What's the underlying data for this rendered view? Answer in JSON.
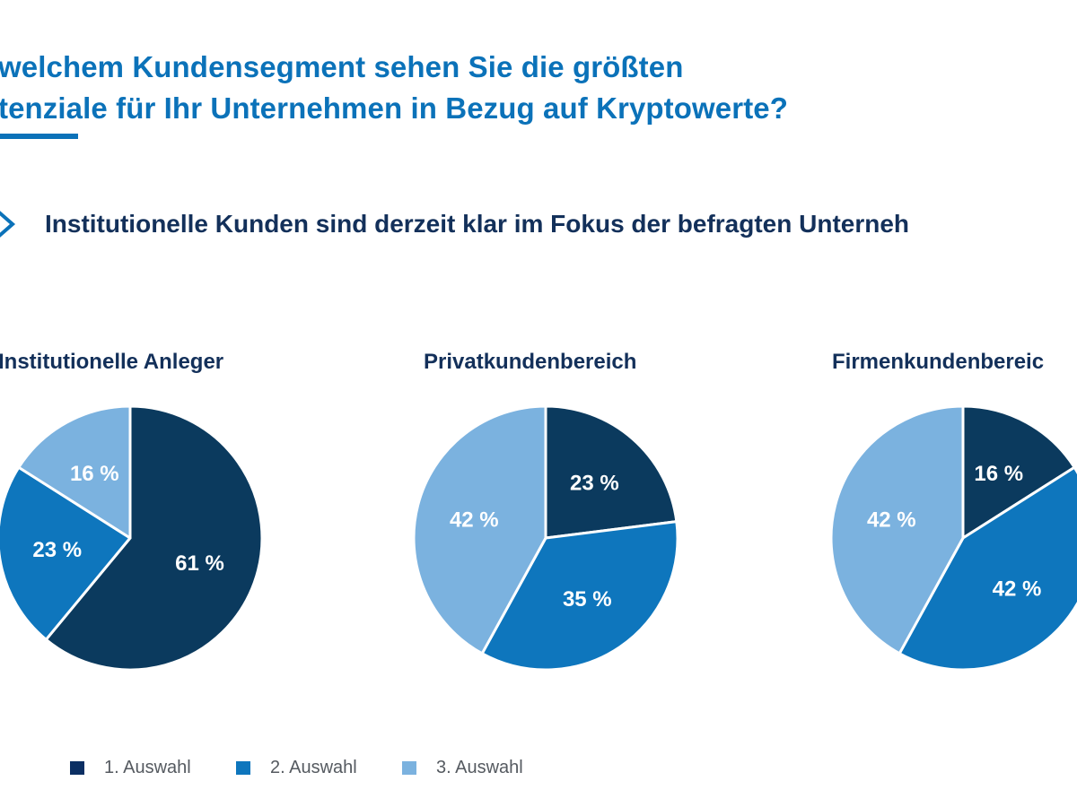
{
  "header": {
    "title_lines": [
      "welchem Kundensegment sehen Sie die größten",
      "tenziale für Ihr Unternehmen in Bezug auf Kryptowerte?"
    ],
    "accent_color": "#0b72b9"
  },
  "subtitle": {
    "icon": "chevron-right-icon",
    "text": "Institutionelle Kunden sind derzeit klar im Fokus der befragten Unterneh"
  },
  "colors": {
    "first_choice": "#0b3a5e",
    "second_choice": "#0e76bd",
    "third_choice": "#7bb2df"
  },
  "legend": [
    {
      "label": "1. Auswahl",
      "color": "#0b2f63"
    },
    {
      "label": "2. Auswahl",
      "color": "#0e76bd"
    },
    {
      "label": "3. Auswahl",
      "color": "#7bb2df"
    }
  ],
  "chart_data": [
    {
      "type": "pie",
      "title": "Institutionelle Anleger",
      "categories": [
        "1. Auswahl",
        "2. Auswahl",
        "3. Auswahl"
      ],
      "values": [
        61,
        23,
        16
      ],
      "labels": [
        "61 %",
        "23 %",
        "16 %"
      ],
      "start_angle": "12 o'clock",
      "direction": "clockwise"
    },
    {
      "type": "pie",
      "title": "Privatkundenbereich",
      "categories": [
        "1. Auswahl",
        "2. Auswahl",
        "3. Auswahl"
      ],
      "values": [
        23,
        35,
        42
      ],
      "labels": [
        "23 %",
        "35 %",
        "42 %"
      ],
      "start_angle": "12 o'clock",
      "direction": "clockwise"
    },
    {
      "type": "pie",
      "title": "Firmenkundenbereic",
      "categories": [
        "1. Auswahl",
        "2. Auswahl",
        "3. Auswahl"
      ],
      "values": [
        16,
        42,
        42
      ],
      "labels": [
        "16 %",
        "42 %",
        "42 %"
      ],
      "start_angle": "12 o'clock",
      "direction": "clockwise"
    }
  ]
}
